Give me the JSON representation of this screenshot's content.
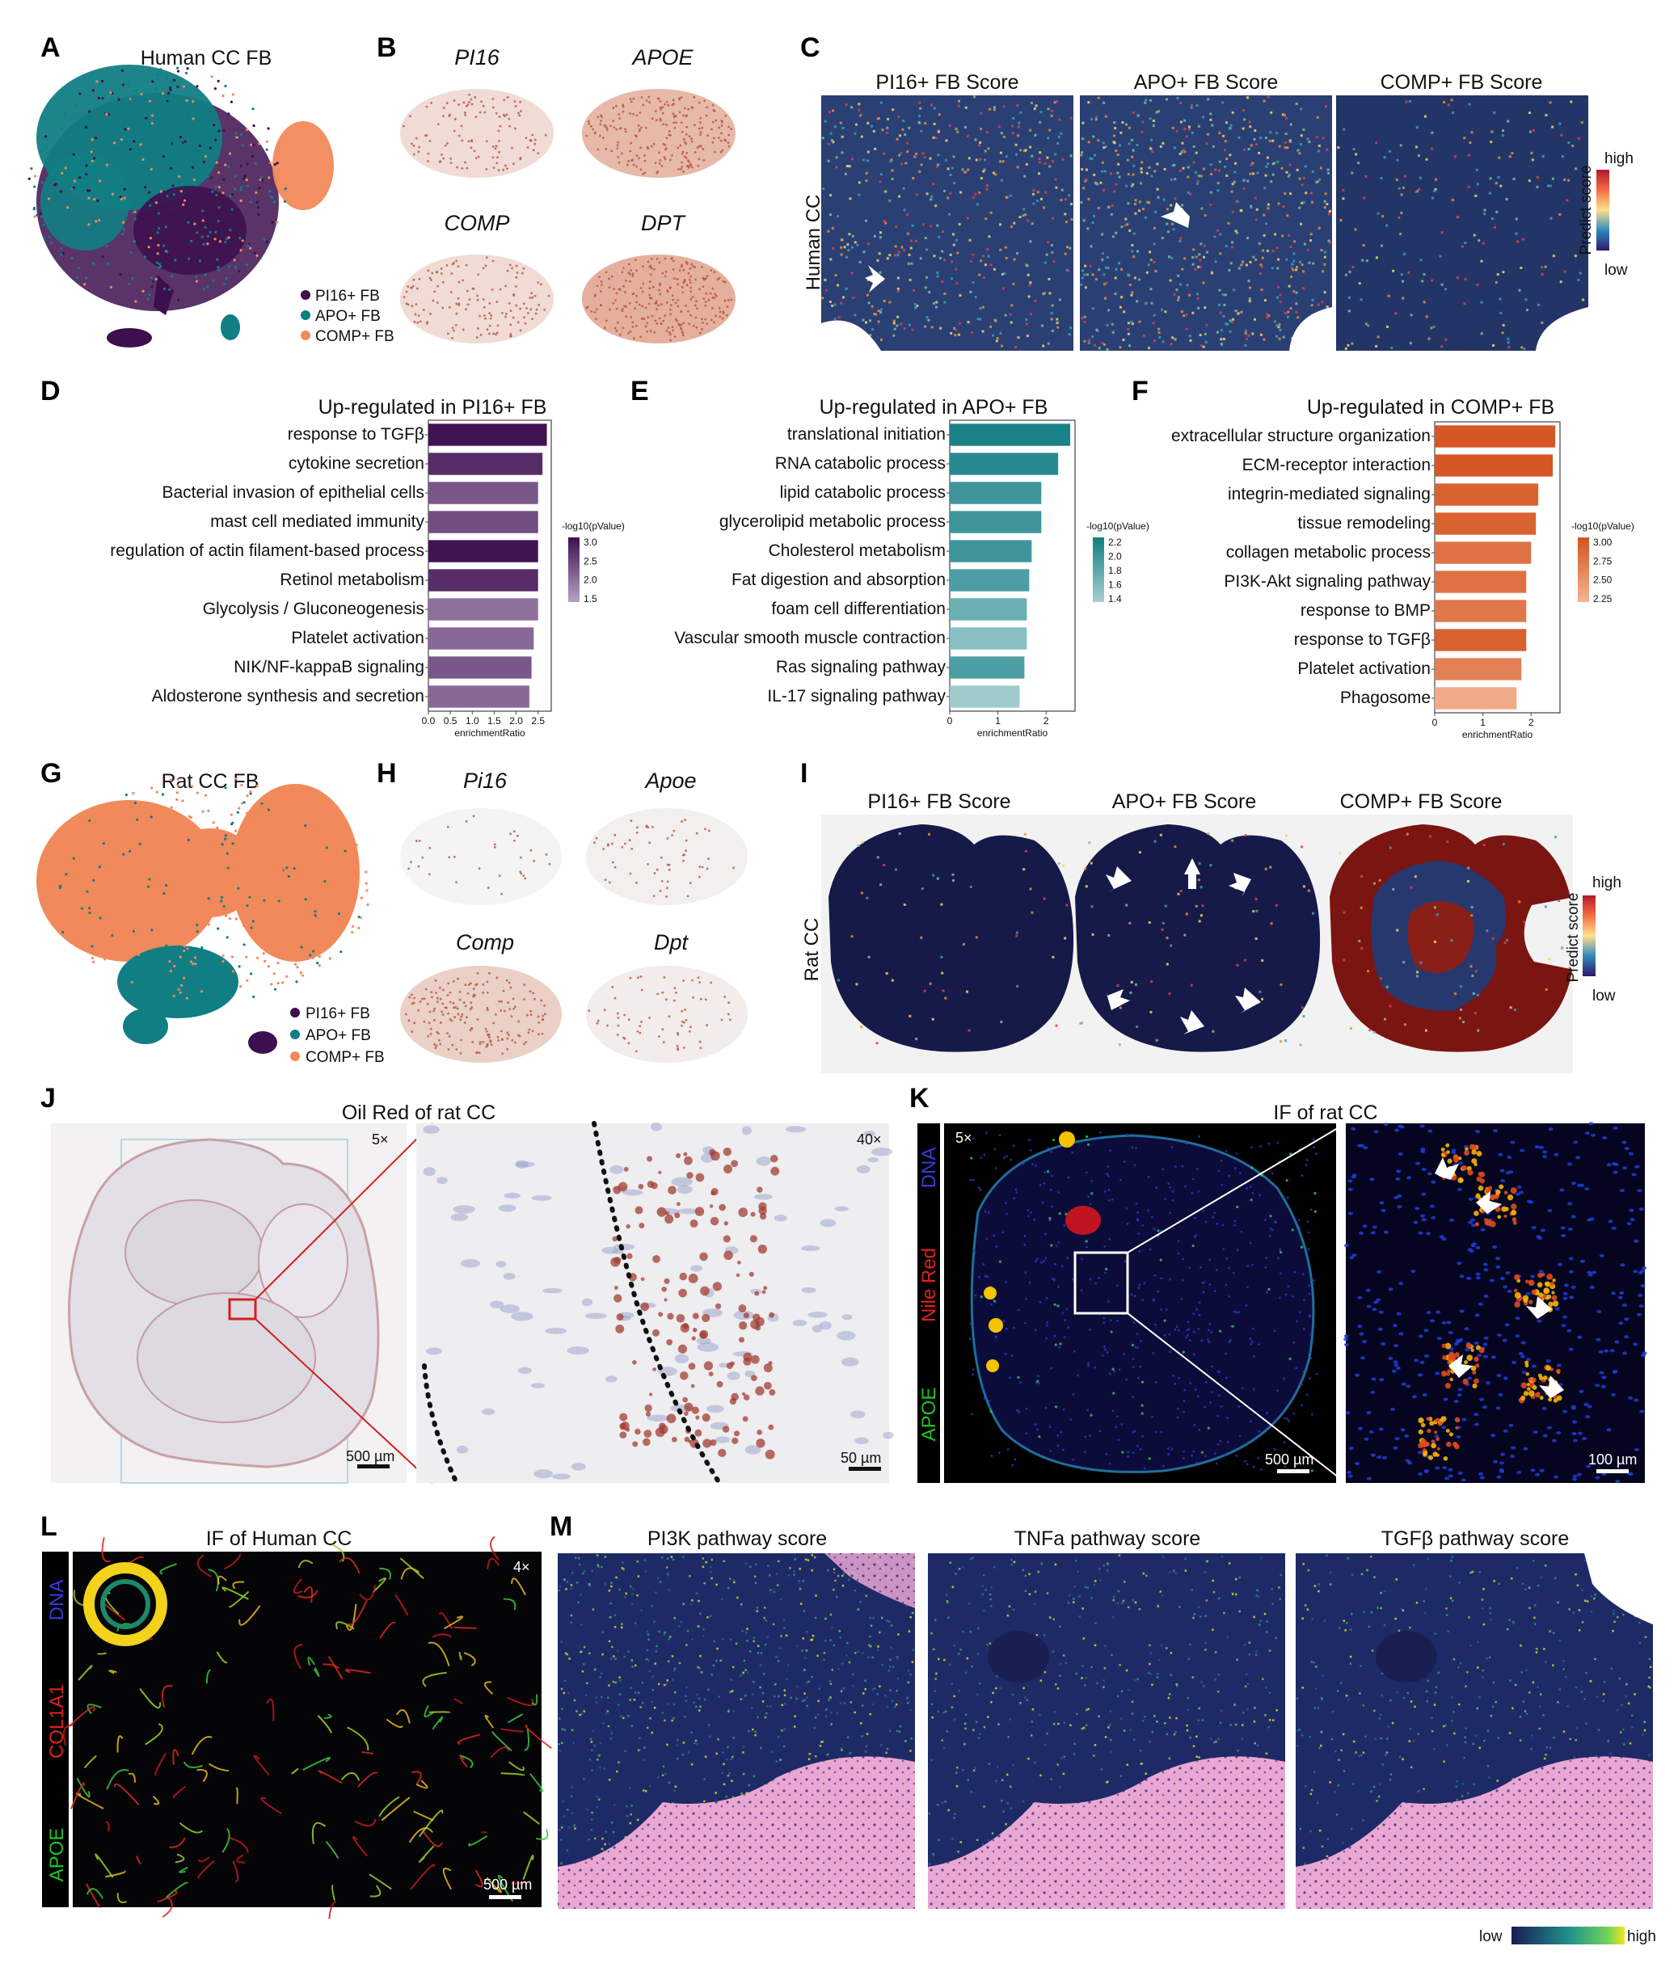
{
  "letters": [
    "A",
    "B",
    "C",
    "D",
    "E",
    "F",
    "G",
    "H",
    "I",
    "J",
    "K",
    "L",
    "M"
  ],
  "panelA": {
    "title": "Human CC FB",
    "legend": [
      {
        "label": "PI16+ FB",
        "color": "#3d0f4f"
      },
      {
        "label": "APO+ FB",
        "color": "#117e84"
      },
      {
        "label": "COMP+ FB",
        "color": "#f2895a"
      }
    ]
  },
  "panelB": {
    "genes": [
      "PI16",
      "APOE",
      "COMP",
      "DPT"
    ]
  },
  "panelC": {
    "titles": [
      "PI16+ FB Score",
      "APO+ FB Score",
      "COMP+ FB Score"
    ],
    "ylabel": "Human CC",
    "legend_title": "Predict score",
    "high": "high",
    "low": "low"
  },
  "panelD": {
    "title": "Up-regulated in PI16+ FB",
    "xlabel": "enrichmentRatio",
    "ticks": [
      "0.0",
      "0.5",
      "1.0",
      "1.5",
      "2.0",
      "2.5"
    ],
    "legend_title": "-log10(pValue)",
    "legend_ticks": [
      "3.0",
      "2.5",
      "2.0",
      "1.5"
    ],
    "terms": [
      "response to TGFβ",
      "cytokine secretion",
      "Bacterial invasion of epithelial cells",
      "mast cell mediated immunity",
      "regulation of actin filament-based process",
      "Retinol metabolism",
      "Glycolysis / Gluconeogenesis",
      "Platelet activation",
      "NIK/NF-kappaB signaling",
      "Aldosterone synthesis and secretion"
    ],
    "chart_data": {
      "type": "bar",
      "values": [
        2.7,
        2.6,
        2.5,
        2.5,
        2.5,
        2.5,
        2.5,
        2.4,
        2.35,
        2.3
      ],
      "pvals": [
        3.0,
        2.7,
        2.2,
        2.3,
        3.0,
        2.7,
        1.9,
        2.0,
        2.2,
        2.0
      ],
      "xlim": [
        0,
        2.8
      ],
      "clim": [
        1.3,
        3.05
      ]
    }
  },
  "panelE": {
    "title": "Up-regulated in APO+ FB",
    "xlabel": "enrichmentRatio",
    "ticks": [
      "0",
      "1",
      "2"
    ],
    "legend_title": "-log10(pValue)",
    "legend_ticks": [
      "2.2",
      "2.0",
      "1.8",
      "1.6",
      "1.4"
    ],
    "terms": [
      "translational initiation",
      "RNA catabolic process",
      "lipid catabolic process",
      "glycerolipid metabolic process",
      "Cholesterol metabolism",
      "Fat digestion and absorption",
      "foam cell differentiation",
      "Vascular smooth muscle contraction",
      "Ras signaling pathway",
      "IL-17 signaling pathway"
    ],
    "chart_data": {
      "type": "bar",
      "values": [
        2.5,
        2.25,
        1.9,
        1.9,
        1.7,
        1.65,
        1.6,
        1.6,
        1.55,
        1.45
      ],
      "pvals": [
        2.25,
        2.15,
        2.0,
        2.0,
        2.0,
        1.9,
        1.7,
        1.5,
        1.9,
        1.35
      ],
      "xlim": [
        0,
        2.6
      ],
      "clim": [
        1.3,
        2.3
      ]
    }
  },
  "panelF": {
    "title": "Up-regulated in COMP+ FB",
    "xlabel": "enrichmentRatio",
    "ticks": [
      "0",
      "1",
      "2"
    ],
    "legend_title": "-log10(pValue)",
    "legend_ticks": [
      "3.00",
      "2.75",
      "2.50",
      "2.25"
    ],
    "terms": [
      "extracellular structure organization",
      "ECM-receptor interaction",
      "integrin-mediated signaling",
      "tissue remodeling",
      "collagen metabolic process",
      "PI3K-Akt signaling pathway",
      "response to BMP",
      "response to TGFβ",
      "Platelet activation",
      "Phagosome"
    ],
    "chart_data": {
      "type": "bar",
      "values": [
        2.5,
        2.45,
        2.15,
        2.1,
        2.0,
        1.9,
        1.9,
        1.9,
        1.8,
        1.7
      ],
      "pvals": [
        3.0,
        3.0,
        2.9,
        2.9,
        2.75,
        2.75,
        2.7,
        2.9,
        2.6,
        2.2
      ],
      "xlim": [
        0,
        2.6
      ],
      "clim": [
        2.1,
        3.05
      ]
    }
  },
  "panelG": {
    "title": "Rat CC FB",
    "legend": [
      {
        "label": "PI16+ FB",
        "color": "#3d0f4f"
      },
      {
        "label": "APO+ FB",
        "color": "#117e84"
      },
      {
        "label": "COMP+ FB",
        "color": "#f2895a"
      }
    ]
  },
  "panelH": {
    "genes": [
      "Pi16",
      "Apoe",
      "Comp",
      "Dpt"
    ]
  },
  "panelI": {
    "titles": [
      "PI16+ FB Score",
      "APO+ FB Score",
      "COMP+ FB Score"
    ],
    "ylabel": "Rat CC",
    "legend_title": "Predict score",
    "high": "high",
    "low": "low"
  },
  "panelJ": {
    "title": "Oil Red of rat CC",
    "mag1": "5×",
    "mag2": "40×",
    "scale1": "500 µm",
    "scale2": "50 µm"
  },
  "panelK": {
    "title": "IF of rat CC",
    "mag": "5×",
    "labels": [
      "DNA",
      "Nile Red",
      "APOE"
    ],
    "scale1": "500 µm",
    "scale2": "100 µm"
  },
  "panelL": {
    "title": "IF of Human CC",
    "mag": "4×",
    "labels": [
      "DNA",
      "COL1A1",
      "APOE"
    ],
    "scale": "500 µm"
  },
  "panelM": {
    "titles": [
      "PI3K pathway score",
      "TNFa pathway score",
      "TGFβ pathway score"
    ],
    "low": "low",
    "high": "high"
  },
  "colors": {
    "pi16": "#3d0f4f",
    "apo": "#117e84",
    "comp": "#f2895a",
    "navy": "#1a1c56",
    "dark_red": "#7a1512",
    "gene_dot": "#b5533d",
    "pink": "#e6a9d3"
  }
}
